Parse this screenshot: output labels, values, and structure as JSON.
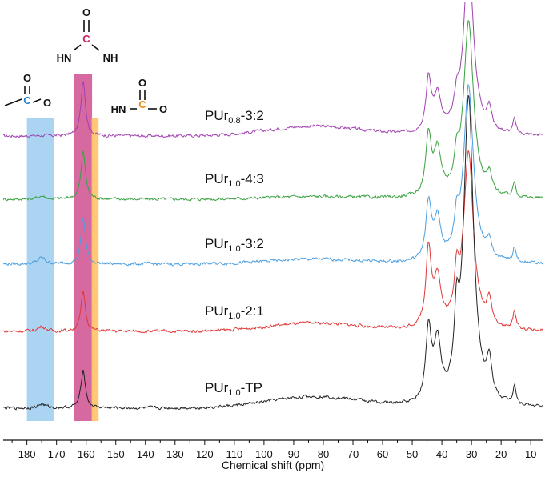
{
  "chart_data": {
    "type": "line",
    "title": "",
    "xlabel": "Chemical shift (ppm)",
    "ylabel": "",
    "xlim": [
      188,
      6
    ],
    "x_reversed": true,
    "grid": false,
    "x_ticks": [
      180,
      170,
      160,
      150,
      140,
      130,
      120,
      110,
      100,
      90,
      80,
      70,
      60,
      50,
      40,
      30,
      20,
      10
    ],
    "peaks": [
      {
        "ppm": 175,
        "width": 1.5
      },
      {
        "ppm": 161,
        "width": 0.9
      },
      {
        "ppm": 44.5,
        "width": 1.1
      },
      {
        "ppm": 41.5,
        "width": 1.4
      },
      {
        "ppm": 35,
        "width": 0.9
      },
      {
        "ppm": 31,
        "width": 2.0
      },
      {
        "ppm": 24,
        "width": 1.0
      },
      {
        "ppm": 15.5,
        "width": 0.6
      }
    ],
    "broad_hump": {
      "ppm": 83,
      "width": 22
    },
    "series": [
      {
        "name": "PUr",
        "subscript": "0.8",
        "suffix": "-3:2",
        "color": "#a040b0",
        "baseline": 170,
        "amps": [
          0.5,
          70,
          65,
          45,
          28,
          220,
          25,
          18
        ],
        "hump": 12
      },
      {
        "name": "PUr",
        "subscript": "1.0",
        "suffix": "-4:3",
        "color": "#3aa040",
        "baseline": 249,
        "amps": [
          4,
          60,
          75,
          55,
          35,
          220,
          22,
          18
        ],
        "hump": 3
      },
      {
        "name": "PUr",
        "subscript": "1.0",
        "suffix": "-3:2",
        "color": "#4a9ee0",
        "baseline": 330,
        "amps": [
          8,
          58,
          70,
          50,
          38,
          220,
          20,
          18
        ],
        "hump": 6
      },
      {
        "name": "PUr",
        "subscript": "1.0",
        "suffix": "-2:1",
        "color": "#e03838",
        "baseline": 414,
        "amps": [
          6,
          50,
          95,
          60,
          55,
          220,
          30,
          22
        ],
        "hump": 10
      },
      {
        "name": "PUr",
        "subscript": "1.0",
        "suffix": "-TP",
        "color": "#222222",
        "baseline": 510,
        "amps": [
          5,
          48,
          90,
          72,
          80,
          385,
          42,
          24
        ],
        "hump": 14
      }
    ],
    "highlight_bands": [
      {
        "from": 180,
        "to": 171,
        "color": "#8ec5ee",
        "label": "ester carbonyl"
      },
      {
        "from": 164,
        "to": 158,
        "color": "#cc3f86",
        "label": "urea carbonyl"
      },
      {
        "from": 158.2,
        "to": 155.8,
        "color": "#ffb64a",
        "label": "urethane carbonyl"
      }
    ],
    "structures": [
      {
        "name": "urea",
        "atoms": [
          "O",
          "HN",
          "C",
          "NH"
        ],
        "carbon_color": "#cc2266"
      },
      {
        "name": "urethane",
        "atoms": [
          "O",
          "HN",
          "C",
          "O"
        ],
        "carbon_color": "#f08a10"
      },
      {
        "name": "ester",
        "atoms": [
          "O",
          "C",
          "O"
        ],
        "carbon_color": "#1f7fd0"
      }
    ]
  }
}
